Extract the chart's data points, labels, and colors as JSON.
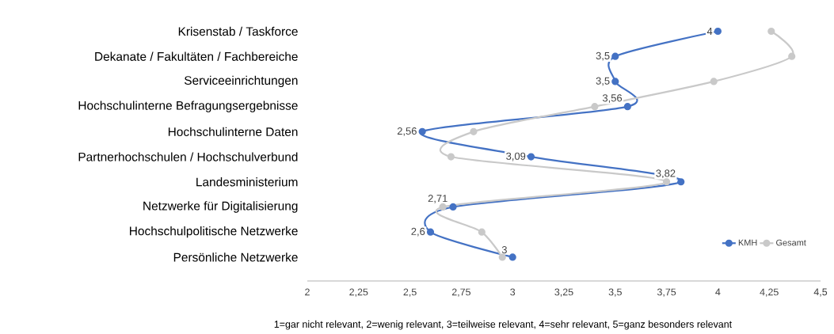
{
  "chart_data": {
    "type": "line",
    "orientation": "horizontal",
    "categories": [
      "Krisenstab / Taskforce",
      "Dekanate / Fakultäten / Fachbereiche",
      "Serviceeinrichtungen",
      "Hochschulinterne Befragungsergebnisse",
      "Hochschulinterne Daten",
      "Partnerhochschulen / Hochschulverbund",
      "Landesministerium",
      "Netzwerke für Digitalisierung",
      "Hochschulpolitische Netzwerke",
      "Persönliche Netzwerke"
    ],
    "series": [
      {
        "name": "KMH",
        "color": "#4472c4",
        "values": [
          4,
          3.5,
          3.5,
          3.56,
          2.56,
          3.09,
          3.82,
          2.71,
          2.6,
          3
        ],
        "value_labels": [
          "4",
          "3,5",
          "3,5",
          "3,56",
          "2,56",
          "3,09",
          "3,82",
          "2,71",
          "2,6",
          "3"
        ]
      },
      {
        "name": "Gesamt",
        "color": "#c9c9c9",
        "values": [
          4.26,
          4.36,
          3.98,
          3.4,
          2.81,
          2.7,
          3.75,
          2.66,
          2.85,
          2.95
        ]
      }
    ],
    "xlim": [
      2,
      4.5
    ],
    "xticks": [
      2,
      {
        "value": 2.25,
        "label": "2,25"
      },
      {
        "value": 2.5,
        "label": "2,5"
      },
      {
        "value": 2.75,
        "label": "2,75"
      },
      3,
      {
        "value": 3.25,
        "label": "3,25"
      },
      {
        "value": 3.5,
        "label": "3,5"
      },
      {
        "value": 3.75,
        "label": "3,75"
      },
      4,
      {
        "value": 4.25,
        "label": "4,25"
      },
      {
        "value": 4.5,
        "label": "4,5"
      }
    ],
    "marker": "circle",
    "line_style": "solid",
    "grid": false,
    "legend": "bottom right",
    "annotations": [
      "1=gar nicht relevant, 2=wenig relevant, 3=teilweise relevant, 4=sehr relevant, 5=ganz besonders relevant"
    ]
  }
}
